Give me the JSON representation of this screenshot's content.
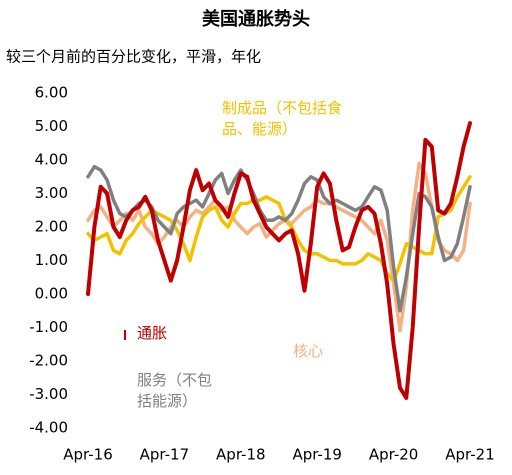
{
  "chart_data": {
    "type": "line",
    "title": "美国通胀势头",
    "subtitle": "较三个月前的百分比变化，平滑，年化",
    "categories": [
      "Apr-16",
      null,
      null,
      null,
      null,
      null,
      null,
      null,
      null,
      null,
      null,
      null,
      "Apr-17",
      null,
      null,
      null,
      null,
      null,
      null,
      null,
      null,
      null,
      null,
      null,
      "Apr-18",
      null,
      null,
      null,
      null,
      null,
      null,
      null,
      null,
      null,
      null,
      null,
      "Apr-19",
      null,
      null,
      null,
      null,
      null,
      null,
      null,
      null,
      null,
      null,
      null,
      "Apr-20",
      null,
      null,
      null,
      null,
      null,
      null,
      null,
      null,
      null,
      null,
      null,
      "Apr-21"
    ],
    "ylim": [
      -4,
      6
    ],
    "yticks": [
      {
        "value": -4,
        "label": "-4.00"
      },
      {
        "value": -3,
        "label": "-3.00"
      },
      {
        "value": -2,
        "label": "-2.00"
      },
      {
        "value": -1,
        "label": "-1.00"
      },
      {
        "value": 0,
        "label": "0.00"
      },
      {
        "value": 1,
        "label": "1.00"
      },
      {
        "value": 2,
        "label": "2.00"
      },
      {
        "value": 3,
        "label": "3.00"
      },
      {
        "value": 4,
        "label": "4.00"
      },
      {
        "value": 5,
        "label": "5.00"
      },
      {
        "value": 6,
        "label": "6.00"
      }
    ],
    "grid": false,
    "series": [
      {
        "name": "核心",
        "color": "#f4b183",
        "values": [
          2.2,
          2.5,
          2.6,
          2.3,
          2.0,
          2.2,
          2.4,
          2.2,
          2.5,
          2.0,
          1.8,
          1.5,
          1.7,
          2.0,
          2.2,
          2.0,
          2.3,
          2.5,
          2.4,
          2.6,
          2.8,
          2.5,
          2.6,
          2.2,
          2.0,
          1.8,
          2.0,
          2.1,
          1.7,
          1.9,
          2.1,
          2.2,
          2.1,
          2.3,
          2.5,
          2.6,
          2.8,
          2.7,
          2.7,
          2.6,
          2.5,
          2.4,
          2.3,
          2.2,
          2.0,
          1.8,
          2.2,
          1.6,
          0.3,
          -1.1,
          0.2,
          2.5,
          3.9,
          3.6,
          2.6,
          1.6,
          1.3,
          1.2,
          1.0,
          1.3,
          2.7
        ]
      },
      {
        "name": "制成品（不包括食品、能源）",
        "color": "#f2c200",
        "values": [
          1.8,
          1.6,
          1.7,
          1.8,
          1.3,
          1.2,
          1.6,
          1.8,
          2.1,
          2.3,
          2.5,
          2.4,
          2.3,
          2.2,
          1.9,
          1.5,
          1.0,
          1.7,
          2.3,
          2.5,
          2.6,
          2.2,
          2.0,
          2.4,
          2.7,
          2.7,
          2.8,
          2.8,
          2.9,
          2.8,
          2.7,
          2.2,
          2.0,
          1.6,
          1.3,
          1.2,
          1.2,
          1.1,
          1.0,
          1.0,
          0.9,
          0.9,
          0.9,
          1.0,
          1.2,
          1.1,
          1.0,
          0.6,
          0.4,
          0.9,
          1.5,
          1.4,
          1.3,
          1.2,
          1.2,
          2.3,
          2.4,
          2.5,
          2.9,
          3.2,
          3.5
        ]
      },
      {
        "name": "服务（不包括能源）",
        "color": "#808080",
        "values": [
          3.5,
          3.8,
          3.7,
          3.4,
          2.8,
          2.4,
          2.3,
          2.5,
          2.7,
          2.8,
          2.6,
          2.2,
          2.0,
          1.8,
          2.4,
          2.6,
          2.7,
          2.8,
          2.6,
          3.0,
          3.4,
          3.6,
          3.0,
          3.4,
          3.7,
          3.4,
          3.0,
          2.5,
          2.2,
          2.2,
          2.3,
          2.2,
          2.4,
          2.8,
          3.3,
          3.5,
          3.4,
          2.9,
          2.7,
          2.8,
          2.7,
          2.6,
          2.5,
          2.6,
          2.9,
          3.2,
          3.1,
          2.5,
          0.8,
          -0.5,
          0.5,
          1.8,
          3.0,
          2.9,
          2.6,
          1.7,
          1.0,
          1.1,
          1.5,
          2.3,
          3.2
        ]
      },
      {
        "name": "通胀",
        "color": "#c00000",
        "values": [
          0.0,
          2.0,
          3.2,
          3.0,
          2.0,
          1.7,
          2.2,
          2.5,
          2.6,
          2.9,
          2.5,
          1.6,
          1.0,
          0.4,
          1.0,
          2.0,
          3.1,
          3.7,
          3.1,
          3.3,
          2.8,
          2.6,
          2.3,
          3.0,
          3.6,
          3.5,
          2.8,
          2.4,
          2.0,
          1.8,
          1.6,
          1.8,
          1.9,
          1.2,
          0.1,
          1.5,
          3.2,
          3.6,
          3.3,
          2.2,
          1.3,
          1.4,
          2.0,
          2.5,
          2.6,
          2.4,
          1.5,
          0.3,
          -1.5,
          -2.8,
          -3.1,
          -1.0,
          2.0,
          4.6,
          4.4,
          2.5,
          2.4,
          2.7,
          3.5,
          4.4,
          5.1
        ]
      }
    ]
  }
}
